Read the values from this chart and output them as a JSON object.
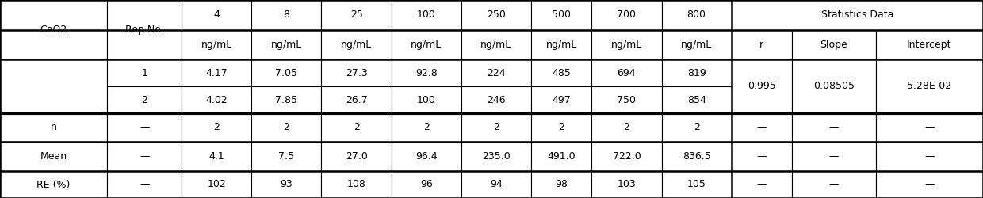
{
  "conc_headers": [
    "4",
    "8",
    "25",
    "100",
    "250",
    "500",
    "700",
    "800"
  ],
  "unit": "ng/mL",
  "stats_header": "Statistics Data",
  "sub_stats": [
    "r",
    "Slope",
    "Intercept"
  ],
  "row_labels_left": [
    "CeO2",
    "Rep No."
  ],
  "rep1": [
    "1",
    "4.17",
    "7.05",
    "27.3",
    "92.8",
    "224",
    "485",
    "694",
    "819"
  ],
  "rep2": [
    "2",
    "4.02",
    "7.85",
    "26.7",
    "100",
    "246",
    "497",
    "750",
    "854"
  ],
  "stats_vals": [
    "0.995",
    "0.08505",
    "5.28E-02"
  ],
  "row_n": [
    "n",
    "—",
    "2",
    "2",
    "2",
    "2",
    "2",
    "2",
    "2",
    "2",
    "—",
    "—",
    "—"
  ],
  "row_mean": [
    "Mean",
    "—",
    "4.1",
    "7.5",
    "27.0",
    "96.4",
    "235.0",
    "491.0",
    "722.0",
    "836.5",
    "—",
    "—",
    "—"
  ],
  "row_re": [
    "RE (%)",
    "—",
    "102",
    "93",
    "108",
    "96",
    "94",
    "98",
    "103",
    "105",
    "—",
    "—",
    "—"
  ],
  "bg_color": "#ffffff",
  "line_color": "#000000",
  "thick_line": 1.8,
  "thin_line": 0.8,
  "font_size": 9.0,
  "figw": 12.4,
  "figh": 2.5,
  "dpi": 100
}
